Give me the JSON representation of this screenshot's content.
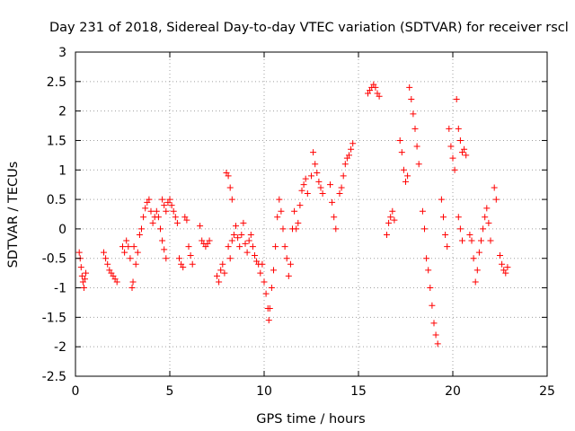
{
  "chart_data": {
    "type": "scatter",
    "title": "Day 231 of 2018, Sidereal Day-to-day VTEC variation (SDTVAR) for receiver rscl",
    "xlabel": "GPS time / hours",
    "ylabel": "SDTVAR / TECUs",
    "xlim": [
      0,
      25
    ],
    "ylim": [
      -2.5,
      3
    ],
    "xticks": [
      "0",
      "5",
      "10",
      "15",
      "20",
      "25"
    ],
    "yticks": [
      "-2.5",
      "-2",
      "-1.5",
      "-1",
      "-0.5",
      "0",
      "0.5",
      "1",
      "1.5",
      "2",
      "2.5",
      "3"
    ],
    "grid": true,
    "marker": "+",
    "color": "#ff0000",
    "series": [
      {
        "name": "SDTVAR",
        "points": [
          [
            0.2,
            -0.4
          ],
          [
            0.25,
            -0.5
          ],
          [
            0.3,
            -0.65
          ],
          [
            0.35,
            -0.8
          ],
          [
            0.4,
            -0.9
          ],
          [
            0.45,
            -1.0
          ],
          [
            0.5,
            -0.85
          ],
          [
            0.55,
            -0.75
          ],
          [
            1.5,
            -0.4
          ],
          [
            1.6,
            -0.5
          ],
          [
            1.7,
            -0.6
          ],
          [
            1.8,
            -0.7
          ],
          [
            1.9,
            -0.75
          ],
          [
            2.0,
            -0.8
          ],
          [
            2.1,
            -0.85
          ],
          [
            2.2,
            -0.9
          ],
          [
            2.5,
            -0.3
          ],
          [
            2.6,
            -0.4
          ],
          [
            2.7,
            -0.2
          ],
          [
            2.8,
            -0.3
          ],
          [
            2.9,
            -0.5
          ],
          [
            3.0,
            -1.0
          ],
          [
            3.05,
            -0.9
          ],
          [
            3.1,
            -0.3
          ],
          [
            3.2,
            -0.6
          ],
          [
            3.3,
            -0.4
          ],
          [
            3.4,
            -0.1
          ],
          [
            3.5,
            0.0
          ],
          [
            3.6,
            0.2
          ],
          [
            3.7,
            0.35
          ],
          [
            3.8,
            0.45
          ],
          [
            3.9,
            0.5
          ],
          [
            4.0,
            0.3
          ],
          [
            4.1,
            0.1
          ],
          [
            4.2,
            0.2
          ],
          [
            4.3,
            0.3
          ],
          [
            4.4,
            0.2
          ],
          [
            4.5,
            0.0
          ],
          [
            4.6,
            -0.2
          ],
          [
            4.7,
            -0.35
          ],
          [
            4.8,
            -0.5
          ],
          [
            4.6,
            0.5
          ],
          [
            4.7,
            0.4
          ],
          [
            4.8,
            0.3
          ],
          [
            4.9,
            0.45
          ],
          [
            5.0,
            0.5
          ],
          [
            5.1,
            0.4
          ],
          [
            5.2,
            0.3
          ],
          [
            5.3,
            0.2
          ],
          [
            5.4,
            0.1
          ],
          [
            5.5,
            -0.5
          ],
          [
            5.6,
            -0.6
          ],
          [
            5.7,
            -0.65
          ],
          [
            5.8,
            0.2
          ],
          [
            5.9,
            0.15
          ],
          [
            6.0,
            -0.3
          ],
          [
            6.1,
            -0.45
          ],
          [
            6.2,
            -0.6
          ],
          [
            6.6,
            0.05
          ],
          [
            6.7,
            -0.2
          ],
          [
            6.8,
            -0.25
          ],
          [
            6.9,
            -0.3
          ],
          [
            7.0,
            -0.25
          ],
          [
            7.1,
            -0.2
          ],
          [
            7.5,
            -0.8
          ],
          [
            7.6,
            -0.9
          ],
          [
            7.7,
            -0.7
          ],
          [
            7.8,
            -0.6
          ],
          [
            7.9,
            -0.75
          ],
          [
            8.0,
            0.95
          ],
          [
            8.1,
            0.9
          ],
          [
            8.2,
            0.7
          ],
          [
            8.3,
            0.5
          ],
          [
            8.1,
            -0.3
          ],
          [
            8.2,
            -0.5
          ],
          [
            8.3,
            -0.2
          ],
          [
            8.4,
            -0.1
          ],
          [
            8.5,
            0.05
          ],
          [
            8.6,
            -0.15
          ],
          [
            8.7,
            -0.3
          ],
          [
            8.8,
            -0.1
          ],
          [
            8.9,
            0.1
          ],
          [
            9.0,
            -0.25
          ],
          [
            9.1,
            -0.4
          ],
          [
            9.2,
            -0.2
          ],
          [
            9.3,
            -0.1
          ],
          [
            9.4,
            -0.3
          ],
          [
            9.5,
            -0.45
          ],
          [
            9.6,
            -0.55
          ],
          [
            9.7,
            -0.6
          ],
          [
            9.8,
            -0.75
          ],
          [
            9.9,
            -0.6
          ],
          [
            10.0,
            -0.9
          ],
          [
            10.1,
            -1.1
          ],
          [
            10.2,
            -1.35
          ],
          [
            10.25,
            -1.55
          ],
          [
            10.3,
            -1.35
          ],
          [
            10.4,
            -1.0
          ],
          [
            10.5,
            -0.7
          ],
          [
            10.6,
            -0.3
          ],
          [
            10.7,
            0.2
          ],
          [
            10.8,
            0.5
          ],
          [
            10.9,
            0.3
          ],
          [
            11.0,
            0.0
          ],
          [
            11.1,
            -0.3
          ],
          [
            11.2,
            -0.5
          ],
          [
            11.3,
            -0.8
          ],
          [
            11.4,
            -0.6
          ],
          [
            11.5,
            0.0
          ],
          [
            11.6,
            0.3
          ],
          [
            11.7,
            0.0
          ],
          [
            11.8,
            0.1
          ],
          [
            11.9,
            0.4
          ],
          [
            12.0,
            0.65
          ],
          [
            12.1,
            0.75
          ],
          [
            12.2,
            0.85
          ],
          [
            12.3,
            0.6
          ],
          [
            12.5,
            0.9
          ],
          [
            12.6,
            1.3
          ],
          [
            12.7,
            1.1
          ],
          [
            12.8,
            0.95
          ],
          [
            12.9,
            0.8
          ],
          [
            13.0,
            0.7
          ],
          [
            13.1,
            0.6
          ],
          [
            13.5,
            0.75
          ],
          [
            13.6,
            0.45
          ],
          [
            13.7,
            0.2
          ],
          [
            13.8,
            0.0
          ],
          [
            14.0,
            0.6
          ],
          [
            14.1,
            0.7
          ],
          [
            14.2,
            0.9
          ],
          [
            14.3,
            1.1
          ],
          [
            14.4,
            1.2
          ],
          [
            14.5,
            1.25
          ],
          [
            14.6,
            1.35
          ],
          [
            14.7,
            1.45
          ],
          [
            15.5,
            2.3
          ],
          [
            15.6,
            2.35
          ],
          [
            15.7,
            2.4
          ],
          [
            15.8,
            2.45
          ],
          [
            15.9,
            2.4
          ],
          [
            16.0,
            2.3
          ],
          [
            16.1,
            2.25
          ],
          [
            16.5,
            -0.1
          ],
          [
            16.6,
            0.1
          ],
          [
            16.7,
            0.2
          ],
          [
            16.8,
            0.3
          ],
          [
            16.9,
            0.15
          ],
          [
            17.2,
            1.5
          ],
          [
            17.3,
            1.3
          ],
          [
            17.4,
            1.0
          ],
          [
            17.5,
            0.8
          ],
          [
            17.6,
            0.9
          ],
          [
            17.7,
            2.4
          ],
          [
            17.8,
            2.2
          ],
          [
            17.9,
            1.95
          ],
          [
            18.0,
            1.7
          ],
          [
            18.1,
            1.4
          ],
          [
            18.2,
            1.1
          ],
          [
            18.4,
            0.3
          ],
          [
            18.5,
            0.0
          ],
          [
            18.6,
            -0.5
          ],
          [
            18.7,
            -0.7
          ],
          [
            18.8,
            -1.0
          ],
          [
            18.9,
            -1.3
          ],
          [
            19.0,
            -1.6
          ],
          [
            19.1,
            -1.8
          ],
          [
            19.2,
            -1.95
          ],
          [
            19.4,
            0.5
          ],
          [
            19.5,
            0.2
          ],
          [
            19.6,
            -0.1
          ],
          [
            19.7,
            -0.3
          ],
          [
            19.8,
            1.7
          ],
          [
            19.9,
            1.4
          ],
          [
            20.0,
            1.2
          ],
          [
            20.1,
            1.0
          ],
          [
            20.3,
            0.2
          ],
          [
            20.4,
            0.0
          ],
          [
            20.5,
            -0.2
          ],
          [
            20.2,
            2.2
          ],
          [
            20.3,
            1.7
          ],
          [
            20.4,
            1.5
          ],
          [
            20.5,
            1.3
          ],
          [
            20.6,
            1.35
          ],
          [
            20.7,
            1.25
          ],
          [
            20.9,
            -0.1
          ],
          [
            21.0,
            -0.2
          ],
          [
            21.1,
            -0.5
          ],
          [
            21.2,
            -0.9
          ],
          [
            21.3,
            -0.7
          ],
          [
            21.4,
            -0.4
          ],
          [
            21.5,
            -0.2
          ],
          [
            21.6,
            0.0
          ],
          [
            21.7,
            0.2
          ],
          [
            21.8,
            0.35
          ],
          [
            21.9,
            0.1
          ],
          [
            22.0,
            -0.2
          ],
          [
            22.2,
            0.7
          ],
          [
            22.3,
            0.5
          ],
          [
            22.5,
            -0.45
          ],
          [
            22.6,
            -0.6
          ],
          [
            22.7,
            -0.7
          ],
          [
            22.8,
            -0.75
          ],
          [
            22.9,
            -0.65
          ]
        ]
      }
    ]
  }
}
